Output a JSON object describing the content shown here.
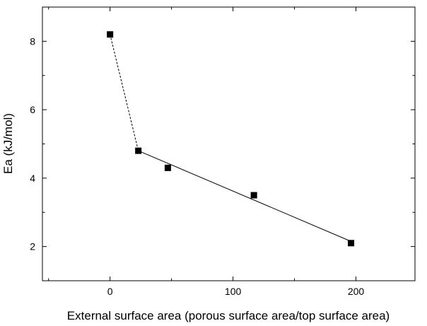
{
  "chart_data": {
    "type": "scatter",
    "title": "",
    "xlabel": "External surface area (porous surface area/top surface area)",
    "ylabel": "Ea (kJ/mol)",
    "xlim": [
      -55,
      248
    ],
    "ylim": [
      1.0,
      9.0
    ],
    "x_ticks": [
      0,
      100,
      200
    ],
    "x_tick_labels": [
      "0",
      "100",
      "200"
    ],
    "x_minor_ticks": [
      -50,
      50,
      150
    ],
    "y_ticks": [
      2,
      4,
      6,
      8
    ],
    "y_tick_labels": [
      "2",
      "4",
      "6",
      "8"
    ],
    "y_minor_ticks": [
      1,
      3,
      5,
      7,
      9
    ],
    "grid": false,
    "legend": "none",
    "series": [
      {
        "marker": "square",
        "color": "#000000",
        "x": [
          0,
          23,
          47,
          117,
          196
        ],
        "y": [
          8.2,
          4.8,
          4.3,
          3.5,
          2.1
        ]
      }
    ],
    "fit_lines": [
      {
        "style": "dashed",
        "color": "#000000",
        "x": [
          0,
          23
        ],
        "y": [
          8.2,
          4.8
        ]
      },
      {
        "style": "solid",
        "color": "#000000",
        "x": [
          23,
          196
        ],
        "y": [
          4.8,
          2.15
        ]
      }
    ]
  }
}
